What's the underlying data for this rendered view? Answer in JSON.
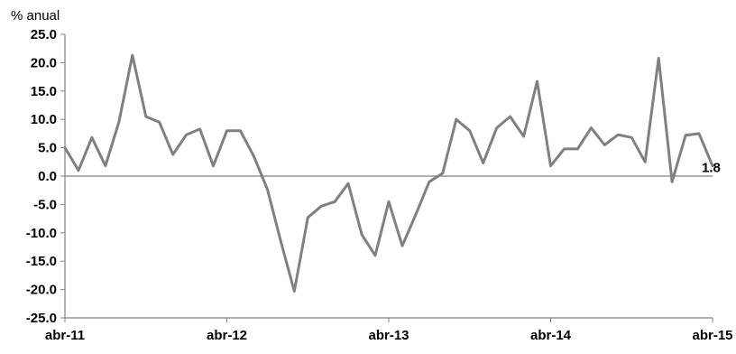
{
  "chart_data": {
    "type": "line",
    "ylabel": "% anual",
    "ylim": [
      -25,
      25
    ],
    "yticks": [
      25,
      20,
      15,
      10,
      5,
      0,
      -5,
      -10,
      -15,
      -20,
      -25
    ],
    "ytick_labels": [
      "25.0",
      "20.0",
      "15.0",
      "10.0",
      "5.0",
      "0.0",
      "-5.0",
      "-10.0",
      "-15.0",
      "-20.0",
      "-25.0"
    ],
    "xtick_labels": [
      "abr-11",
      "abr-12",
      "abr-13",
      "abr-14",
      "abr-15"
    ],
    "grid": false,
    "legend": "none",
    "series": [
      {
        "color": "#808080",
        "x": [
          "2011-04",
          "2011-05",
          "2011-06",
          "2011-07",
          "2011-08",
          "2011-09",
          "2011-10",
          "2011-11",
          "2011-12",
          "2012-01",
          "2012-02",
          "2012-03",
          "2012-04",
          "2012-05",
          "2012-06",
          "2012-07",
          "2012-08",
          "2012-09",
          "2012-10",
          "2012-11",
          "2012-12",
          "2013-01",
          "2013-02",
          "2013-03",
          "2013-04",
          "2013-05",
          "2013-06",
          "2013-07",
          "2013-08",
          "2013-09",
          "2013-10",
          "2013-11",
          "2013-12",
          "2014-01",
          "2014-02",
          "2014-03",
          "2014-04",
          "2014-05",
          "2014-06",
          "2014-07",
          "2014-08",
          "2014-09",
          "2014-10",
          "2014-11",
          "2014-12",
          "2015-01",
          "2015-02",
          "2015-03",
          "2015-04"
        ],
        "values": [
          5.0,
          1.0,
          6.8,
          1.8,
          9.5,
          21.3,
          10.5,
          9.5,
          3.8,
          7.3,
          8.3,
          1.8,
          8.0,
          8.0,
          3.5,
          -2.3,
          -11.5,
          -20.3,
          -7.3,
          -5.3,
          -4.5,
          -1.3,
          -10.3,
          -14.0,
          -4.5,
          -12.3,
          -6.8,
          -1.0,
          0.5,
          10.0,
          8.0,
          2.3,
          8.5,
          10.5,
          7.0,
          16.7,
          1.8,
          4.8,
          4.8,
          8.5,
          5.5,
          7.3,
          6.8,
          2.5,
          20.8,
          -1.0,
          7.2,
          7.5,
          1.8
        ]
      }
    ],
    "annotations": [
      {
        "text": "1.8",
        "x": "2015-04",
        "y": 1.8
      }
    ]
  },
  "style": {
    "line_color": "#808080",
    "axis_color": "#808080"
  }
}
